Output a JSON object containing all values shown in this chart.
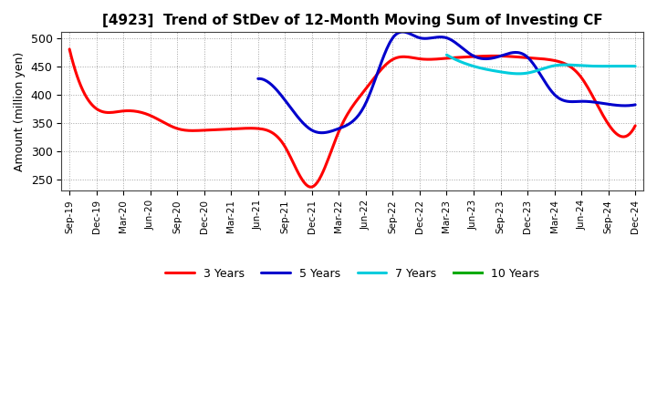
{
  "title": "[4923]  Trend of StDev of 12-Month Moving Sum of Investing CF",
  "ylabel": "Amount (million yen)",
  "ylim": [
    230,
    510
  ],
  "yticks": [
    250,
    300,
    350,
    400,
    450,
    500
  ],
  "background_color": "#ffffff",
  "grid_color": "#aaaaaa",
  "x_labels": [
    "Sep-19",
    "Dec-19",
    "Mar-20",
    "Jun-20",
    "Sep-20",
    "Dec-20",
    "Mar-21",
    "Jun-21",
    "Sep-21",
    "Dec-21",
    "Mar-22",
    "Jun-22",
    "Sep-22",
    "Dec-22",
    "Mar-23",
    "Jun-23",
    "Sep-23",
    "Dec-23",
    "Mar-24",
    "Jun-24",
    "Sep-24",
    "Dec-24"
  ],
  "series": {
    "3 Years": {
      "color": "#ff0000",
      "linewidth": 2.2,
      "data_x": [
        0,
        1,
        2,
        3,
        4,
        5,
        6,
        7,
        8,
        9,
        10,
        11,
        12,
        13,
        14,
        15,
        16,
        17,
        18,
        19,
        20,
        21
      ],
      "data_y": [
        480,
        375,
        371,
        363,
        340,
        337,
        339,
        340,
        308,
        237,
        335,
        410,
        462,
        463,
        464,
        467,
        468,
        465,
        460,
        430,
        348,
        345
      ]
    },
    "5 Years": {
      "color": "#0000cc",
      "linewidth": 2.2,
      "data_x": [
        7,
        8,
        9,
        10,
        11,
        12,
        13,
        14,
        15,
        16,
        17,
        18,
        19,
        20,
        21
      ],
      "data_y": [
        428,
        390,
        337,
        340,
        385,
        500,
        500,
        500,
        468,
        468,
        466,
        400,
        388,
        383,
        382
      ]
    },
    "7 Years": {
      "color": "#00ccdd",
      "linewidth": 2.2,
      "data_x": [
        14,
        15,
        16,
        17,
        18,
        19,
        20,
        21
      ],
      "data_y": [
        470,
        450,
        440,
        438,
        451,
        451,
        450,
        450
      ]
    },
    "10 Years": {
      "color": "#00aa00",
      "linewidth": 2.2,
      "data_x": [],
      "data_y": []
    }
  },
  "legend_order": [
    "3 Years",
    "5 Years",
    "7 Years",
    "10 Years"
  ]
}
